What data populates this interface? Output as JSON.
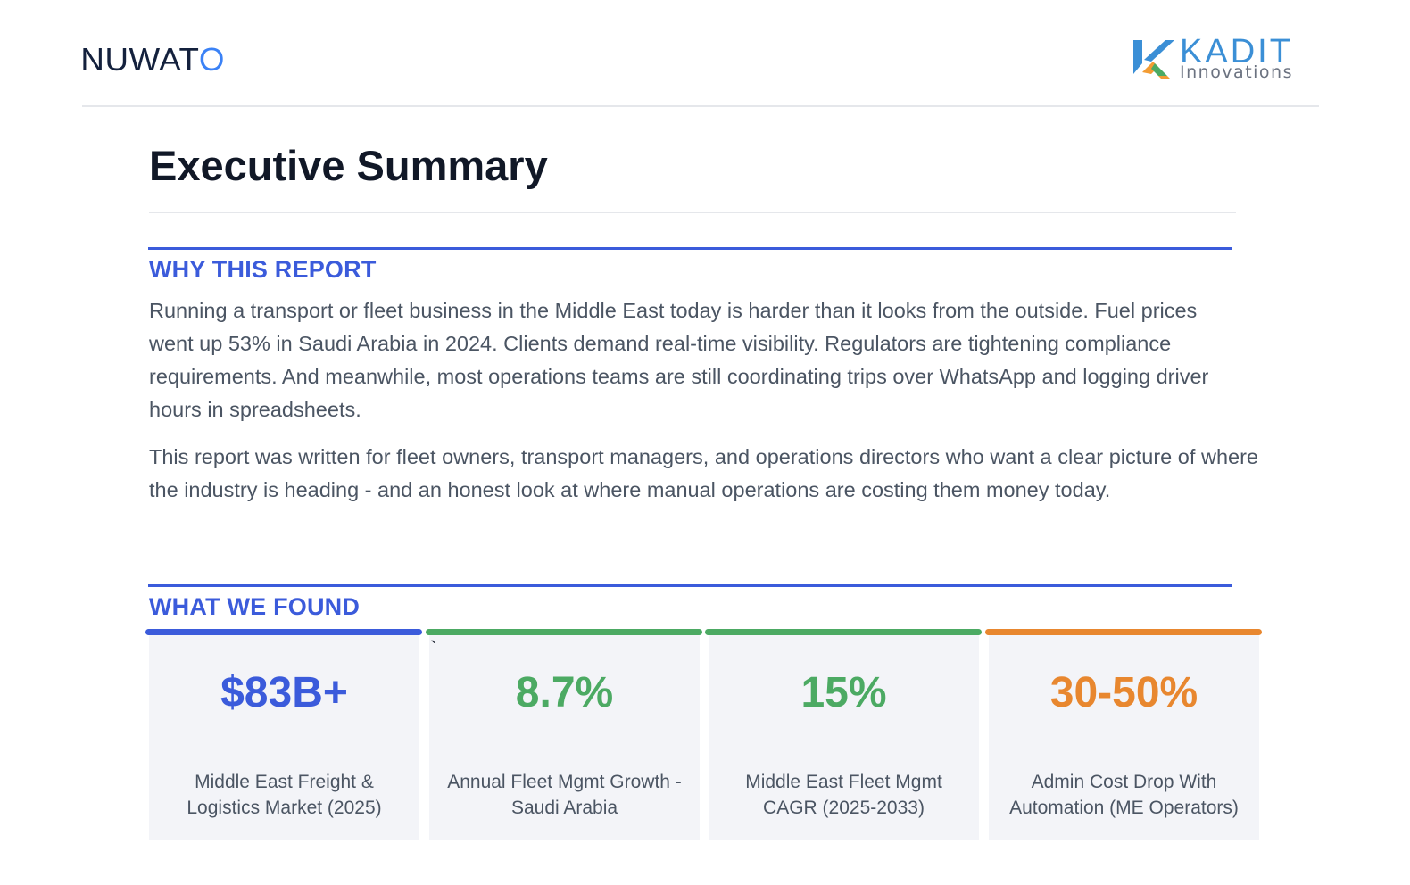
{
  "header": {
    "left_logo": {
      "text_main": "NUWAT",
      "text_accent": "O"
    },
    "right_logo": {
      "word": "KADIT",
      "sub": "Innovations",
      "icon": "kadit-k-icon"
    }
  },
  "page_title": "Executive Summary",
  "sections": {
    "why": {
      "heading": "WHY THIS REPORT",
      "paragraphs": [
        "Running a transport or fleet business in the Middle East today is harder than it looks from the outside. Fuel prices went up 53% in Saudi Arabia in 2024. Clients demand real-time visibility. Regulators are tightening compliance requirements. And meanwhile, most operations teams are still coordinating trips over WhatsApp and logging driver hours in spreadsheets.",
        "This report was written for fleet owners, transport managers, and operations directors who want a clear picture of where the industry is heading - and an honest look at where manual operations are costing them money today."
      ]
    },
    "found": {
      "heading": "WHAT WE FOUND",
      "stray_mark": "`",
      "cards": [
        {
          "value": "$83B+",
          "label": "Middle East Freight & Logistics Market (2025)",
          "color": "#3b5bdb"
        },
        {
          "value": "8.7%",
          "label": "Annual Fleet Mgmt Growth - Saudi Arabia",
          "color": "#4caa63"
        },
        {
          "value": "15%",
          "label": "Middle East Fleet Mgmt CAGR (2025-2033)",
          "color": "#4caa63"
        },
        {
          "value": "30-50%",
          "label": "Admin Cost Drop With Automation (ME Operators)",
          "color": "#e8872f"
        }
      ]
    }
  }
}
